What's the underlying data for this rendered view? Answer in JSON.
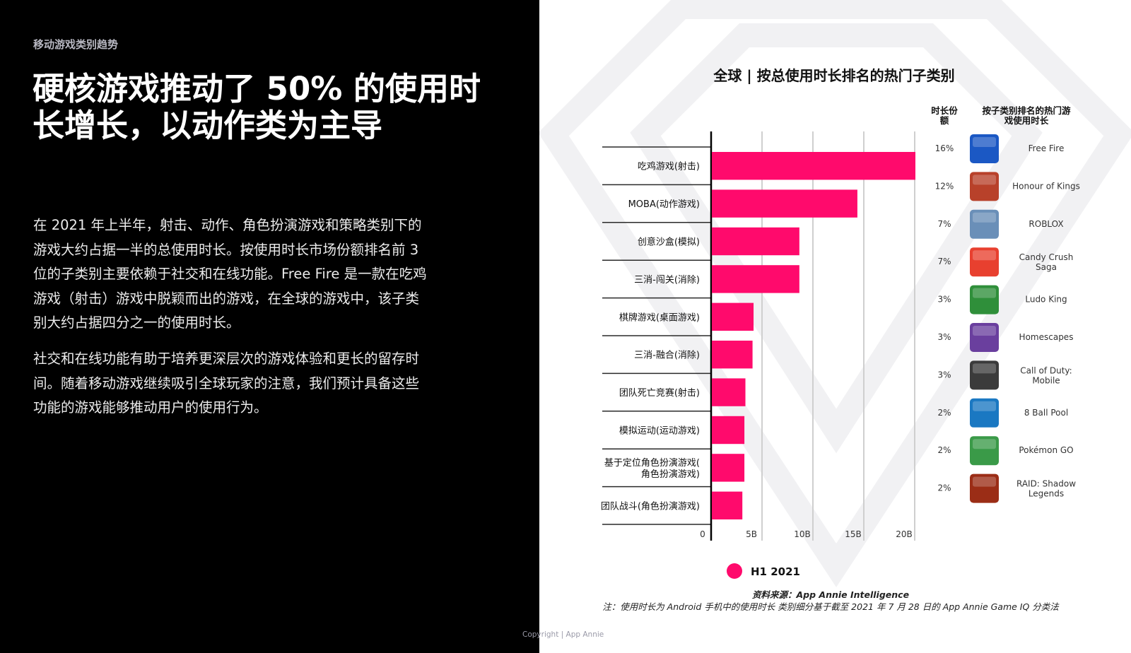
{
  "section_label": "移动游戏类别趋势",
  "headline": "硬核游戏推动了 50% 的使用时长增长，以动作类为主导",
  "paragraphs": [
    "在 2021 年上半年，射击、动作、角色扮演游戏和策略类别下的游戏大约占据一半的总使用时长。按使用时长市场份额排名前 3 位的子类别主要依赖于社交和在线功能。Free Fire 是一款在吃鸡游戏（射击）游戏中脱颖而出的游戏，在全球的游戏中，该子类别大约占据四分之一的使用时长。",
    "社交和在线功能有助于培养更深层次的游戏体验和更长的留存时间。随着移动游戏继续吸引全球玩家的注意，我们预计具备这些功能的游戏能够推动用户的使用行为。"
  ],
  "copyright": "Copyright | App Annie",
  "chart_data": {
    "type": "bar",
    "orientation": "horizontal",
    "title": "全球 | 按总使用时长排名的热门子类别",
    "categories": [
      "吃鸡游戏(射击)",
      "MOBA(动作游戏)",
      "创意沙盒(模拟)",
      "三消-闯关(消除)",
      "棋牌游戏(桌面游戏)",
      "三消-融合(消除)",
      "团队死亡竞赛(射击)",
      "模拟运动(运动游戏)",
      "基于定位角色扮演游戏(角色扮演游戏)",
      "团队战斗(角色扮演游戏)"
    ],
    "series": [
      {
        "name": "H1 2021",
        "values": [
          20.0,
          14.3,
          8.6,
          8.6,
          4.1,
          4.0,
          3.3,
          3.2,
          3.2,
          3.0
        ]
      }
    ],
    "x_ticks": [
      "0",
      "5B",
      "10B",
      "15B",
      "20B"
    ],
    "xlim": [
      0,
      20
    ],
    "grid": true,
    "legend_position": "bottom",
    "bar_color": "#ff0a6c",
    "share_header": "时长份额",
    "top_game_header": "按子类别排名的热门游戏使用时长",
    "shares": [
      "16%",
      "12%",
      "7%",
      "7%",
      "3%",
      "3%",
      "3%",
      "2%",
      "2%",
      "2%"
    ],
    "top_games": [
      "Free Fire",
      "Honour of Kings",
      "ROBLOX",
      "Candy Crush Saga",
      "Ludo King",
      "Homescapes",
      "Call of Duty: Mobile",
      "8 Ball Pool",
      "Pokémon GO",
      "RAID: Shadow Legends"
    ],
    "game_icons": [
      "free-fire-icon",
      "honour-of-kings-icon",
      "roblox-icon",
      "candy-crush-saga-icon",
      "ludo-king-icon",
      "homescapes-icon",
      "call-of-duty-mobile-icon",
      "8-ball-pool-icon",
      "pokemon-go-icon",
      "raid-shadow-legends-icon"
    ],
    "icon_colors": [
      "#1b58c4",
      "#b8412a",
      "#6a8fb8",
      "#e8402f",
      "#2f8f3a",
      "#6a3f9e",
      "#3b3b3b",
      "#1a78c2",
      "#3a9a48",
      "#9b2d16"
    ]
  },
  "source_label": "资料来源：",
  "source_value": "App Annie Intelligence",
  "note": "注：使用时长为 Android 手机中的使用时长 类别细分基于截至 2021 年 7 月 28 日的 App Annie Game IQ 分类法"
}
